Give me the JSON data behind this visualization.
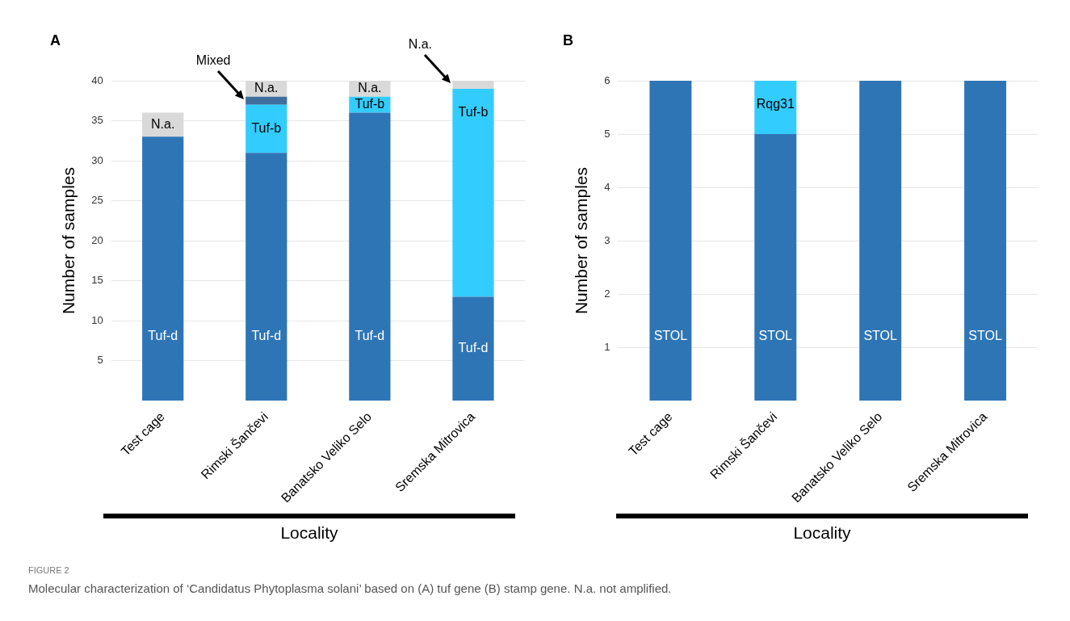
{
  "chart_data": [
    {
      "type": "bar",
      "title": "A",
      "xlabel": "Locality",
      "ylabel": "Number of samples",
      "stacked": true,
      "grid": "y",
      "legend": false,
      "categories": [
        "Test cage",
        "Rimski Šančevi",
        "Banatsko Veliko Selo",
        "Sremska Mitrovica"
      ],
      "ylim": [
        0,
        40
      ],
      "yticks": [
        5,
        10,
        15,
        20,
        25,
        30,
        35,
        40
      ],
      "series": [
        {
          "name": "Tuf-d",
          "color": "#2e75b6",
          "values": [
            33,
            31,
            36,
            13
          ]
        },
        {
          "name": "Tuf-b",
          "color": "#33ccff",
          "values": [
            0,
            6,
            2,
            26
          ]
        },
        {
          "name": "Mixed",
          "color": "#3f6f9f",
          "values": [
            0,
            1,
            0,
            0
          ]
        },
        {
          "name": "N.a.",
          "color": "#d9d9d9",
          "values": [
            3,
            2,
            2,
            1
          ]
        }
      ],
      "annotations": [
        "FIGURE 2",
        "Molecular characterization of ‘Candidatus Phytoplasma solani’ based on (A) tuf gene (B) stamp gene. N.a. not amplified."
      ]
    },
    {
      "type": "bar",
      "title": "B",
      "xlabel": "Locality",
      "ylabel": "Number of samples",
      "stacked": true,
      "grid": "y",
      "legend": false,
      "categories": [
        "Test cage",
        "Rimski Šančevi",
        "Banatsko Veliko Selo",
        "Sremska Mitrovica"
      ],
      "ylim": [
        0,
        6
      ],
      "yticks": [
        1,
        2,
        3,
        4,
        5,
        6
      ],
      "series": [
        {
          "name": "STOL",
          "color": "#2e75b6",
          "values": [
            6,
            5,
            6,
            6
          ]
        },
        {
          "name": "Rqg31",
          "color": "#33ccff",
          "values": [
            0,
            1,
            0,
            0
          ]
        }
      ]
    }
  ]
}
